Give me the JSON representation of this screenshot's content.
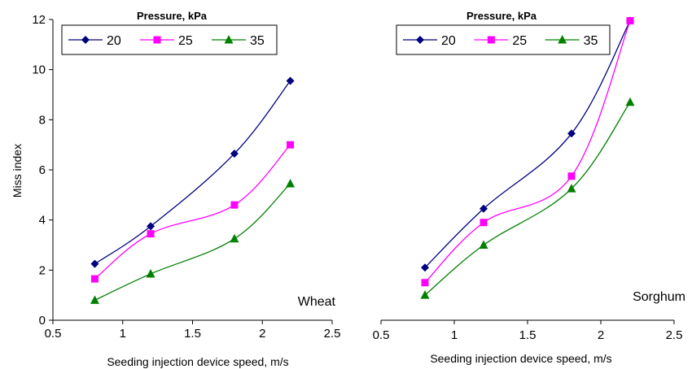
{
  "chart_data": [
    {
      "type": "line",
      "title": "",
      "annotation": "Wheat",
      "xlabel": "Seeding injection device speed, m/s",
      "ylabel": "Miss index",
      "xlim": [
        0.5,
        2.5
      ],
      "ylim": [
        0,
        12
      ],
      "xticks": [
        "0.5",
        "1",
        "1.5",
        "2",
        "2.5"
      ],
      "yticks": [
        "0",
        "2",
        "4",
        "6",
        "8",
        "10",
        "12"
      ],
      "legend_title": "Pressure, kPa",
      "legend_position": "top",
      "grid": false,
      "x": [
        0.8,
        1.2,
        1.8,
        2.2
      ],
      "series": [
        {
          "name": "20",
          "values": [
            2.25,
            3.75,
            6.65,
            9.55
          ],
          "color": "#000080",
          "marker": "diamond"
        },
        {
          "name": "25",
          "values": [
            1.65,
            3.45,
            4.6,
            7.0
          ],
          "color": "#ff00ff",
          "marker": "square"
        },
        {
          "name": "35",
          "values": [
            0.8,
            1.85,
            3.25,
            5.45
          ],
          "color": "#008000",
          "marker": "triangle"
        }
      ]
    },
    {
      "type": "line",
      "title": "",
      "annotation": "Sorghum",
      "xlabel": "Seeding injection device speed, m/s",
      "ylabel": "",
      "xlim": [
        0.5,
        2.5
      ],
      "ylim": [
        0,
        12
      ],
      "xticks": [
        "0.5",
        "1",
        "1.5",
        "2",
        "2.5"
      ],
      "legend_title": "Pressure, kPa",
      "legend_position": "top",
      "grid": false,
      "x": [
        0.8,
        1.2,
        1.8,
        2.2
      ],
      "series": [
        {
          "name": "20",
          "values": [
            2.1,
            4.45,
            7.45,
            11.95
          ],
          "color": "#000080",
          "marker": "diamond"
        },
        {
          "name": "25",
          "values": [
            1.5,
            3.9,
            5.75,
            11.95
          ],
          "color": "#ff00ff",
          "marker": "square"
        },
        {
          "name": "35",
          "values": [
            1.0,
            3.0,
            5.25,
            8.7
          ],
          "color": "#008000",
          "marker": "triangle"
        }
      ]
    }
  ]
}
